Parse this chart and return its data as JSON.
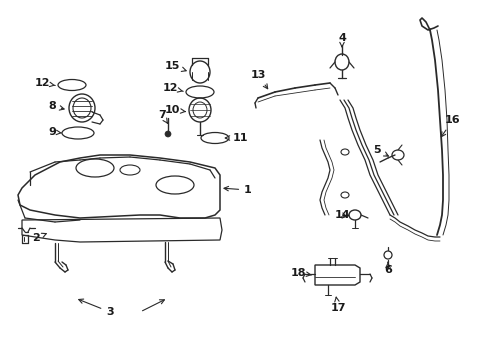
{
  "bg_color": "#ffffff",
  "line_color": "#2a2a2a",
  "text_color": "#1a1a1a",
  "figsize": [
    4.89,
    3.6
  ],
  "dpi": 100
}
